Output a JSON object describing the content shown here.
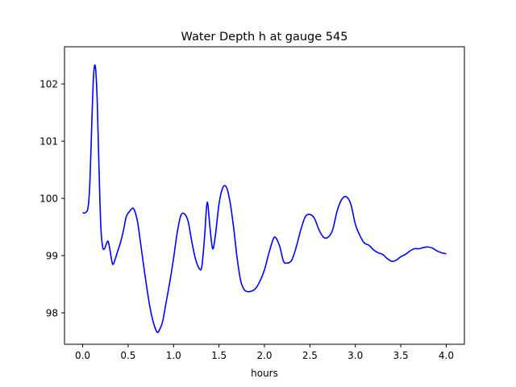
{
  "chart_data": {
    "type": "line",
    "title": "Water Depth h at gauge 545",
    "xlabel": "hours",
    "ylabel": "",
    "xlim": [
      -0.2,
      4.2
    ],
    "ylim": [
      97.45,
      102.65
    ],
    "xticks": [
      0.0,
      0.5,
      1.0,
      1.5,
      2.0,
      2.5,
      3.0,
      3.5,
      4.0
    ],
    "xtick_labels": [
      "0.0",
      "0.5",
      "1.0",
      "1.5",
      "2.0",
      "2.5",
      "3.0",
      "3.5",
      "4.0"
    ],
    "yticks": [
      98,
      99,
      100,
      101,
      102
    ],
    "ytick_labels": [
      "98",
      "99",
      "100",
      "101",
      "102"
    ],
    "grid": false,
    "color": "#0000ff",
    "series": [
      {
        "x": [
          0.0,
          0.03,
          0.06,
          0.08,
          0.1,
          0.12,
          0.14,
          0.16,
          0.18,
          0.2,
          0.22,
          0.24,
          0.26,
          0.28,
          0.3,
          0.33,
          0.36,
          0.39,
          0.42,
          0.45,
          0.48,
          0.52,
          0.56,
          0.6,
          0.63,
          0.66,
          0.7,
          0.74,
          0.78,
          0.82,
          0.85,
          0.88,
          0.92,
          0.96,
          1.0,
          1.04,
          1.08,
          1.12,
          1.16,
          1.2,
          1.24,
          1.28,
          1.31,
          1.34,
          1.37,
          1.4,
          1.43,
          1.46,
          1.5,
          1.54,
          1.58,
          1.62,
          1.66,
          1.7,
          1.74,
          1.78,
          1.82,
          1.86,
          1.9,
          1.95,
          2.0,
          2.05,
          2.1,
          2.13,
          2.17,
          2.21,
          2.25,
          2.3,
          2.35,
          2.4,
          2.45,
          2.5,
          2.55,
          2.6,
          2.65,
          2.7,
          2.75,
          2.8,
          2.85,
          2.9,
          2.95,
          3.0,
          3.05,
          3.1,
          3.15,
          3.2,
          3.25,
          3.3,
          3.35,
          3.4,
          3.45,
          3.5,
          3.55,
          3.6,
          3.65,
          3.7,
          3.75,
          3.8,
          3.85,
          3.9,
          3.95,
          4.0
        ],
        "y": [
          99.75,
          99.75,
          99.85,
          100.3,
          101.3,
          102.15,
          102.3,
          101.7,
          100.5,
          99.5,
          99.15,
          99.12,
          99.2,
          99.25,
          99.1,
          98.85,
          98.95,
          99.1,
          99.25,
          99.45,
          99.68,
          99.78,
          99.82,
          99.62,
          99.3,
          98.95,
          98.5,
          98.1,
          97.82,
          97.66,
          97.72,
          97.85,
          98.2,
          98.55,
          98.95,
          99.4,
          99.7,
          99.73,
          99.6,
          99.25,
          98.95,
          98.78,
          98.8,
          99.3,
          99.93,
          99.5,
          99.12,
          99.35,
          99.9,
          100.18,
          100.2,
          99.95,
          99.5,
          98.95,
          98.55,
          98.4,
          98.37,
          98.38,
          98.42,
          98.55,
          98.75,
          99.05,
          99.3,
          99.3,
          99.15,
          98.9,
          98.87,
          98.92,
          99.15,
          99.45,
          99.68,
          99.72,
          99.65,
          99.45,
          99.32,
          99.32,
          99.45,
          99.78,
          99.98,
          100.03,
          99.9,
          99.55,
          99.35,
          99.22,
          99.18,
          99.1,
          99.05,
          99.02,
          98.95,
          98.9,
          98.92,
          98.98,
          99.02,
          99.08,
          99.12,
          99.12,
          99.14,
          99.15,
          99.13,
          99.08,
          99.05,
          99.03
        ]
      }
    ]
  }
}
